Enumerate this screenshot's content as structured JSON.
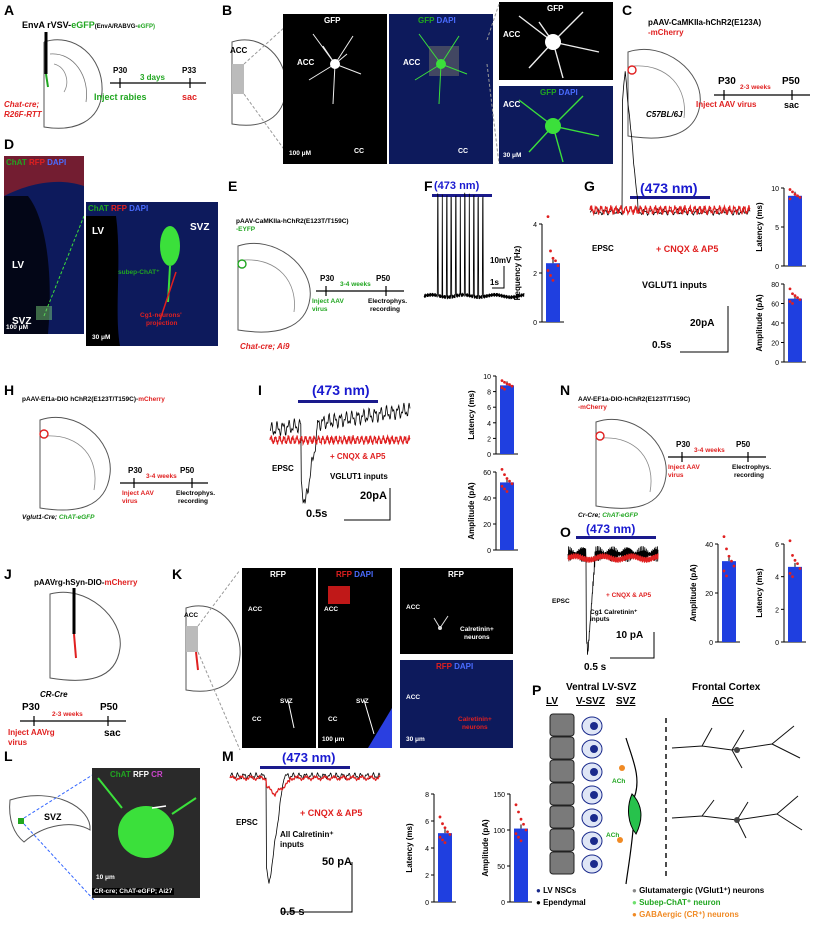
{
  "panels": {
    "A": {
      "label": "A",
      "construct_a": "EnvA rVSV-",
      "construct_b": "eGFP",
      "construct_c": "(EnvA/RABVG-",
      "construct_d": "eGFP)",
      "mouse": "Chat-cre;",
      "mouse2": "R26F-RTT",
      "p30": "P30",
      "days": "3 days",
      "p33": "P33",
      "inject": "Inject rabies",
      "sac": "sac"
    },
    "B": {
      "label": "B",
      "gfp": "GFP",
      "gfp2": "GFP",
      "dapi": "DAPI",
      "acc": "ACC",
      "cc": "CC",
      "scale1": "100 μM",
      "scale2": "30 μM",
      "gfp_zoom": "GFP",
      "gfp_zoom2": "GFP",
      "dapi_zoom": "DAPI"
    },
    "C": {
      "label": "C",
      "construct": "pAAV-CaMKIIa-hChR2(E123A)",
      "construct2": "-mCherry",
      "mouse": "C57BL/6J",
      "p30": "P30",
      "weeks": "2-3 weeks",
      "p50": "P50",
      "inject": "Inject AAV virus",
      "sac": "sac"
    },
    "D": {
      "label": "D",
      "chat": "ChAT",
      "rfp": "RFP",
      "dapi": "DAPI",
      "lv": "LV",
      "svz": "SVZ",
      "scale": "100 μM",
      "lv2": "LV",
      "svz2": "SVZ",
      "subep": "subep-ChAT⁺",
      "cg1": "Cg1-neurons'",
      "projection": "projection",
      "scale2": "30 μM"
    },
    "E": {
      "label": "E",
      "construct": "pAAV-CaMKIIa-hChR2(E123T/T159C)",
      "construct2": "-EYFP",
      "mouse": "Chat-cre; Ai9",
      "p30": "P30",
      "weeks": "3-4 weeks",
      "p50": "P50",
      "inject": "Inject AAV",
      "inject2": "virus",
      "ephys": "Electrophys.",
      "recording": "recording"
    },
    "F": {
      "label": "F",
      "light": "(473 nm)",
      "mv": "10mV",
      "s": "1s",
      "ylabel": "Fequency (Hz)",
      "yticks": [
        "4",
        "2",
        "0"
      ]
    },
    "G": {
      "label": "G",
      "light": "(473 nm)",
      "epsc": "EPSC",
      "cnqx": "+ CNQX & AP5",
      "vglut": "VGLUT1 inputs",
      "pa": "20pA",
      "s": "0.5s",
      "lat_label": "Latency (ms)",
      "lat_ticks": [
        "10",
        "5",
        "0"
      ],
      "amp_label": "Amplitude (pA)",
      "amp_ticks": [
        "80",
        "60",
        "40",
        "20",
        "0"
      ]
    },
    "H": {
      "label": "H",
      "construct": "pAAV-Ef1a-DIO hChR2(E123T/T159C)-",
      "construct2": "mCherry",
      "mouse": "Vglut1-Cre;",
      "mouse2": "ChAT-eGFP",
      "p30": "P30",
      "weeks": "3-4 weeks",
      "p50": "P50",
      "inject": "Inject AAV",
      "inject2": "virus",
      "ephys": "Electrophys.",
      "recording": "recording"
    },
    "I": {
      "label": "I",
      "light": "(473 nm)",
      "epsc": "EPSC",
      "cnqx": "+ CNQX & AP5",
      "vglut": "VGLUT1 inputs",
      "pa": "20pA",
      "s": "0.5s",
      "lat_label": "Latency (ms)",
      "lat_ticks": [
        "10",
        "8",
        "6",
        "4",
        "2",
        "0"
      ],
      "amp_label": "Amplitude (pA)",
      "amp_ticks": [
        "60",
        "40",
        "20",
        "0"
      ]
    },
    "J": {
      "label": "J",
      "construct": "pAAVrg-hSyn-DIO-",
      "construct2": "mCherry",
      "mouse": "CR-Cre",
      "p30": "P30",
      "weeks": "2-3 weeks",
      "p50": "P50",
      "inject": "Inject AAVrg",
      "inject2": "virus",
      "sac": "sac"
    },
    "K": {
      "label": "K",
      "rfp": "RFP",
      "rfp2": "RFP",
      "dapi": "DAPI",
      "acc": "ACC",
      "svz": "SVZ",
      "cc": "CC",
      "scale1": "100 μm",
      "rfp_zoom": "RFP",
      "calretinin": "Calretinin+",
      "neurons": "neurons",
      "scale2": "30 μm",
      "calret2": "Calretinin+",
      "neurons2": "neurons"
    },
    "L": {
      "label": "L",
      "svz": "SVZ",
      "chat": "ChAT",
      "rfp": "RFP",
      "cr": "CR",
      "scale": "10 μm",
      "mouse": "CR-cre; ChAT-eGFP; Ai27"
    },
    "M": {
      "label": "M",
      "light": "(473 nm)",
      "epsc": "EPSC",
      "cnqx": "+ CNQX & AP5",
      "inputs1": "All Calretinin⁺",
      "inputs2": "inputs",
      "pa": "50 pA",
      "s": "0.5 s",
      "lat_label": "Latency (ms)",
      "lat_ticks": [
        "8",
        "6",
        "4",
        "2",
        "0"
      ],
      "amp_label": "Amplitude (pA)",
      "amp_ticks": [
        "150",
        "100",
        "50",
        "0"
      ]
    },
    "N": {
      "label": "N",
      "construct": "AAV-EF1a-DIO-hChR2(E123T/T159C)",
      "construct2": "-mCherry",
      "mouse": "Cr-Cre;",
      "mouse2": "ChAT-eGFP",
      "p30": "P30",
      "weeks": "3-4 weeks",
      "p50": "P50",
      "inject": "Inject AAV",
      "inject2": "virus",
      "ephys": "Electrophys.",
      "recording": "recording"
    },
    "O": {
      "label": "O",
      "light": "(473 nm)",
      "epsc": "EPSC",
      "cnqx": "+ CNQX & AP5",
      "inputs1": "Cg1 Calretinin⁺",
      "inputs2": "inputs",
      "pa": "10 pA",
      "s": "0.5 s",
      "amp_label": "Amplitude (pA)",
      "amp_ticks": [
        "40",
        "20",
        "0"
      ],
      "lat_label": "Latency (ms)",
      "lat_ticks": [
        "6",
        "4",
        "2",
        "0"
      ]
    },
    "P": {
      "label": "P",
      "region1": "Ventral LV-SVZ",
      "region2": "Frontal Cortex",
      "lv": "LV",
      "vsvz": "V-SVZ",
      "svz": "SVZ",
      "acc": "ACC",
      "ach1": "ACh",
      "ach2": "ACh",
      "legend_lv": "LV NSCs",
      "legend_ep": "Ependymal",
      "legend_glut": "Glutamatergic (VGlut1⁺) neurons",
      "legend_subep": "Subep-ChAT⁺ neuron",
      "legend_gaba": "GABAergic (CR⁺) neurons"
    }
  },
  "colors": {
    "red": "#e02020",
    "green": "#21a621",
    "blue": "#1a1ad0",
    "bar": "#1f3fe0",
    "navy": "#1a1a8c"
  },
  "chart_data": [
    {
      "type": "bar",
      "panel": "F",
      "ylabel": "Fequency (Hz)",
      "ylim": [
        0,
        4
      ],
      "values": [
        2.4
      ],
      "points": [
        4.3,
        2.9,
        2.6,
        2.5,
        2.3,
        2.1,
        1.9,
        1.7
      ]
    },
    {
      "type": "bar",
      "panel": "G-latency",
      "ylabel": "Latency (ms)",
      "ylim": [
        0,
        10
      ],
      "values": [
        9
      ],
      "points": [
        9.8,
        9.5,
        9.2,
        9,
        8.8,
        8.6
      ]
    },
    {
      "type": "bar",
      "panel": "G-amplitude",
      "ylabel": "Amplitude (pA)",
      "ylim": [
        0,
        80
      ],
      "values": [
        65
      ],
      "points": [
        75,
        70,
        68,
        66,
        64,
        62,
        60
      ]
    },
    {
      "type": "bar",
      "panel": "I-latency",
      "ylabel": "Latency (ms)",
      "ylim": [
        0,
        10
      ],
      "values": [
        8.8
      ],
      "points": [
        9.4,
        9.2,
        9,
        8.9,
        8.7,
        8.5,
        8.3
      ]
    },
    {
      "type": "bar",
      "panel": "I-amplitude",
      "ylabel": "Amplitude (pA)",
      "ylim": [
        0,
        60
      ],
      "values": [
        52
      ],
      "points": [
        62,
        58,
        55,
        53,
        51,
        49,
        47,
        45
      ]
    },
    {
      "type": "bar",
      "panel": "M-latency",
      "ylabel": "Latency (ms)",
      "ylim": [
        0,
        8
      ],
      "values": [
        5.1
      ],
      "points": [
        6.3,
        5.8,
        5.5,
        5.2,
        5,
        4.8,
        4.6,
        4.4
      ]
    },
    {
      "type": "bar",
      "panel": "M-amplitude",
      "ylabel": "Amplitude (pA)",
      "ylim": [
        0,
        150
      ],
      "values": [
        102
      ],
      "points": [
        135,
        125,
        115,
        108,
        100,
        95,
        90,
        85
      ]
    },
    {
      "type": "bar",
      "panel": "O-amplitude",
      "ylabel": "Amplitude (pA)",
      "ylim": [
        0,
        40
      ],
      "values": [
        33
      ],
      "points": [
        43,
        38,
        35,
        33,
        31,
        29,
        27
      ]
    },
    {
      "type": "bar",
      "panel": "O-latency",
      "ylabel": "Latency (ms)",
      "ylim": [
        0,
        6
      ],
      "values": [
        4.6
      ],
      "points": [
        6.2,
        5.3,
        5,
        4.8,
        4.5,
        4.2,
        4
      ]
    }
  ]
}
